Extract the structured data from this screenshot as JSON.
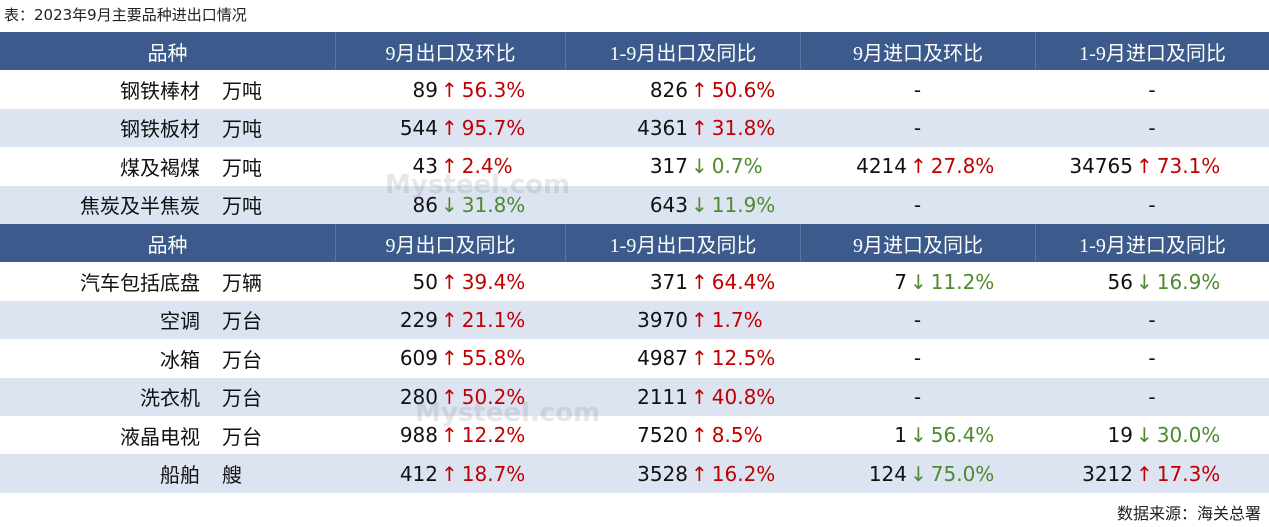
{
  "caption": "表：2023年9月主要品种进出口情况",
  "watermark": "Mysteel.com",
  "tables": [
    {
      "header": [
        "品种",
        "9月出口及环比",
        "1-9月出口及同比",
        "9月进口及环比",
        "1-9月进口及同比"
      ],
      "rows": [
        {
          "name": "钢铁棒材",
          "unit": "万吨",
          "cells": [
            {
              "value": "89",
              "arrow": "↑",
              "change": "56.3%"
            },
            {
              "value": "826",
              "arrow": "↑",
              "change": "50.6%"
            },
            "-",
            "-"
          ]
        },
        {
          "name": "钢铁板材",
          "unit": "万吨",
          "cells": [
            {
              "value": "544",
              "arrow": "↑",
              "change": "95.7%"
            },
            {
              "value": "4361",
              "arrow": "↑",
              "change": "31.8%"
            },
            "-",
            "-"
          ]
        },
        {
          "name": "煤及褐煤",
          "unit": "万吨",
          "cells": [
            {
              "value": "43",
              "arrow": "↑",
              "change": "2.4%"
            },
            {
              "value": "317",
              "arrow": "↓",
              "change": "0.7%"
            },
            {
              "value": "4214",
              "arrow": "↑",
              "change": "27.8%"
            },
            {
              "value": "34765",
              "arrow": "↑",
              "change": "73.1%"
            }
          ]
        },
        {
          "name": "焦炭及半焦炭",
          "unit": "万吨",
          "cells": [
            {
              "value": "86",
              "arrow": "↓",
              "change": "31.8%"
            },
            {
              "value": "643",
              "arrow": "↓",
              "change": "11.9%"
            },
            "-",
            "-"
          ]
        }
      ]
    },
    {
      "header": [
        "品种",
        "9月出口及同比",
        "1-9月出口及同比",
        "9月进口及同比",
        "1-9月进口及同比"
      ],
      "rows": [
        {
          "name": "汽车包括底盘",
          "unit": "万辆",
          "cells": [
            {
              "value": "50",
              "arrow": "↑",
              "change": "39.4%"
            },
            {
              "value": "371",
              "arrow": "↑",
              "change": "64.4%"
            },
            {
              "value": "7",
              "arrow": "↓",
              "change": "11.2%"
            },
            {
              "value": "56",
              "arrow": "↓",
              "change": "16.9%"
            }
          ]
        },
        {
          "name": "空调",
          "unit": "万台",
          "cells": [
            {
              "value": "229",
              "arrow": "↑",
              "change": "21.1%"
            },
            {
              "value": "3970",
              "arrow": "↑",
              "change": "1.7%"
            },
            "-",
            "-"
          ]
        },
        {
          "name": "冰箱",
          "unit": "万台",
          "cells": [
            {
              "value": "609",
              "arrow": "↑",
              "change": "55.8%"
            },
            {
              "value": "4987",
              "arrow": "↑",
              "change": "12.5%"
            },
            "-",
            "-"
          ]
        },
        {
          "name": "洗衣机",
          "unit": "万台",
          "cells": [
            {
              "value": "280",
              "arrow": "↑",
              "change": "50.2%"
            },
            {
              "value": "2111",
              "arrow": "↑",
              "change": "40.8%"
            },
            "-",
            "-"
          ]
        },
        {
          "name": "液晶电视",
          "unit": "万台",
          "cells": [
            {
              "value": "988",
              "arrow": "↑",
              "change": "12.2%"
            },
            {
              "value": "7520",
              "arrow": "↑",
              "change": "8.5%"
            },
            {
              "value": "1",
              "arrow": "↓",
              "change": "56.4%"
            },
            {
              "value": "19",
              "arrow": "↓",
              "change": "30.0%"
            }
          ]
        },
        {
          "name": "船舶",
          "unit": "艘",
          "cells": [
            {
              "value": "412",
              "arrow": "↑",
              "change": "18.7%"
            },
            {
              "value": "3528",
              "arrow": "↑",
              "change": "16.2%"
            },
            {
              "value": "124",
              "arrow": "↓",
              "change": "75.0%"
            },
            {
              "value": "3212",
              "arrow": "↑",
              "change": "17.3%"
            }
          ]
        }
      ]
    }
  ],
  "source": "数据来源：海关总署"
}
